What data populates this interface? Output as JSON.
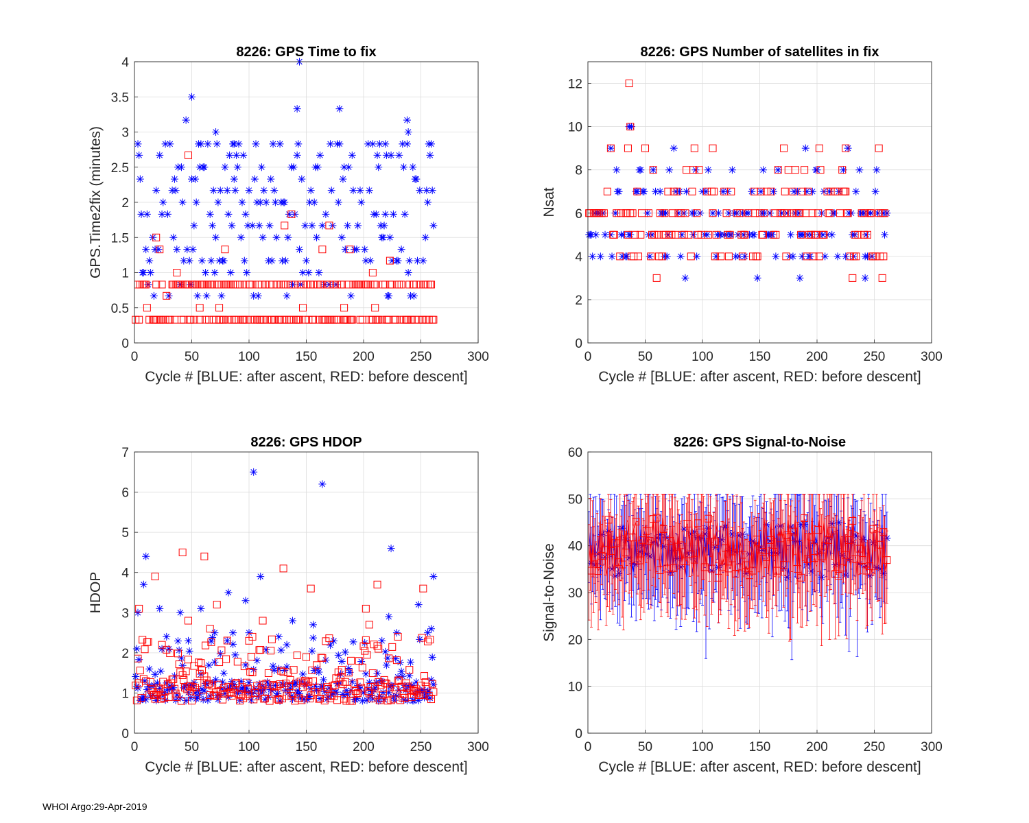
{
  "footer": "WHOI Argo:29-Apr-2019",
  "colors": {
    "ascent": "#0000ff",
    "descent": "#ff0000",
    "grid": "#dcdcdc",
    "axis": "#262626"
  },
  "chart_data": [
    {
      "id": "ttf",
      "type": "scatter",
      "title": "8226: GPS Time to fix",
      "xlabel": "Cycle #  [BLUE: after ascent, RED: before descent]",
      "ylabel": "GPS.Time2fix (minutes)",
      "xlim": [
        0,
        300
      ],
      "ylim": [
        0,
        4
      ],
      "xticks": [
        0,
        50,
        100,
        150,
        200,
        250,
        300
      ],
      "yticks": [
        0,
        0.5,
        1,
        1.5,
        2,
        2.5,
        3,
        3.5,
        4
      ],
      "cycle_range": [
        1,
        261
      ],
      "series": [
        {
          "name": "after ascent",
          "marker": "asterisk",
          "color": "#0000ff",
          "levels": [
            0.67,
            0.83,
            1.0,
            1.17,
            1.33,
            1.5,
            1.67,
            1.83,
            2.0,
            2.17,
            2.33,
            2.5,
            2.67,
            2.83
          ],
          "highlights": [
            [
              50,
              3.5
            ],
            [
              45,
              3.17
            ],
            [
              71,
              3.0
            ],
            [
              87,
              2.83
            ],
            [
              144,
              4.0
            ],
            [
              142,
              3.33
            ],
            [
              179,
              3.33
            ],
            [
              238,
              3.17
            ],
            [
              239,
              3.0
            ],
            [
              219,
              2.83
            ]
          ]
        },
        {
          "name": "before descent",
          "marker": "square",
          "color": "#ff0000",
          "levels": [
            0.33,
            0.83
          ],
          "highlights": [
            [
              47,
              2.67
            ],
            [
              19,
              1.5
            ],
            [
              22,
              1.33
            ],
            [
              37,
              1.0
            ],
            [
              79,
              1.33
            ],
            [
              131,
              1.67
            ],
            [
              137,
              1.83
            ],
            [
              164,
              1.33
            ],
            [
              170,
              1.67
            ],
            [
              188,
              1.33
            ],
            [
              208,
              1.0
            ],
            [
              223,
              1.17
            ],
            [
              11,
              0.5
            ],
            [
              28,
              0.67
            ],
            [
              57,
              0.5
            ],
            [
              74,
              0.5
            ],
            [
              147,
              0.5
            ],
            [
              183,
              0.5
            ],
            [
              210,
              0.5
            ]
          ]
        }
      ]
    },
    {
      "id": "nsat",
      "type": "scatter",
      "title": "8226: GPS Number of satellites in fix",
      "xlabel": "Cycle #  [BLUE: after ascent, RED: before descent]",
      "ylabel": "Nsat",
      "xlim": [
        0,
        300
      ],
      "ylim": [
        0,
        13
      ],
      "xticks": [
        0,
        50,
        100,
        150,
        200,
        250,
        300
      ],
      "yticks": [
        0,
        2,
        4,
        6,
        8,
        10,
        12
      ],
      "cycle_range": [
        1,
        261
      ],
      "series": [
        {
          "name": "after ascent",
          "marker": "asterisk",
          "color": "#0000ff",
          "levels": [
            4,
            5,
            6,
            7,
            8
          ],
          "highlights": [
            [
              85,
              3
            ],
            [
              148,
              3
            ],
            [
              185,
              3
            ],
            [
              242,
              3
            ],
            [
              20,
              9
            ],
            [
              75,
              9
            ],
            [
              190,
              9
            ],
            [
              227,
              9
            ],
            [
              36,
              10
            ],
            [
              38,
              10
            ]
          ]
        },
        {
          "name": "before descent",
          "marker": "square",
          "color": "#ff0000",
          "levels": [
            4,
            5,
            6,
            7,
            8
          ],
          "highlights": [
            [
              36,
              12
            ],
            [
              37,
              10
            ],
            [
              20,
              9
            ],
            [
              35,
              9
            ],
            [
              50,
              9
            ],
            [
              93,
              9
            ],
            [
              109,
              9
            ],
            [
              171,
              9
            ],
            [
              202,
              9
            ],
            [
              225,
              9
            ],
            [
              254,
              9
            ],
            [
              60,
              3
            ],
            [
              231,
              3
            ],
            [
              257,
              3
            ]
          ]
        }
      ]
    },
    {
      "id": "hdop",
      "type": "scatter",
      "title": "8226: GPS HDOP",
      "xlabel": "Cycle #  [BLUE: after ascent, RED: before descent]",
      "ylabel": "HDOP",
      "xlim": [
        0,
        300
      ],
      "ylim": [
        0,
        7
      ],
      "xticks": [
        0,
        50,
        100,
        150,
        200,
        250,
        300
      ],
      "yticks": [
        0,
        1,
        2,
        3,
        4,
        5,
        6,
        7
      ],
      "cycle_range": [
        1,
        261
      ],
      "series": [
        {
          "name": "after ascent",
          "marker": "asterisk",
          "color": "#0000ff",
          "highlights": [
            [
              104,
              6.5
            ],
            [
              164,
              6.2
            ],
            [
              224,
              4.6
            ],
            [
              10,
              4.4
            ],
            [
              8,
              3.7
            ],
            [
              261,
              3.9
            ],
            [
              110,
              3.9
            ],
            [
              3,
              3.0
            ],
            [
              22,
              3.1
            ],
            [
              40,
              3.0
            ],
            [
              58,
              3.1
            ],
            [
              82,
              3.5
            ],
            [
              97,
              3.3
            ],
            [
              156,
              2.7
            ],
            [
              138,
              2.8
            ],
            [
              248,
              3.2
            ],
            [
              256,
              2.5
            ],
            [
              259,
              2.6
            ],
            [
              229,
              2.5
            ],
            [
              222,
              2.9
            ],
            [
              216,
              2.3
            ],
            [
              2,
              2.1
            ],
            [
              28,
              2.4
            ],
            [
              47,
              2.3
            ],
            [
              70,
              2.5
            ],
            [
              86,
              2.5
            ],
            [
              100,
              2.5
            ],
            [
              133,
              2.2
            ],
            [
              126,
              2.4
            ]
          ]
        },
        {
          "name": "before descent",
          "marker": "square",
          "color": "#ff0000",
          "highlights": [
            [
              42,
              4.5
            ],
            [
              61,
              4.4
            ],
            [
              130,
              4.1
            ],
            [
              18,
              3.9
            ],
            [
              154,
              3.6
            ],
            [
              212,
              3.7
            ],
            [
              252,
              3.6
            ],
            [
              4,
              3.1
            ],
            [
              72,
              3.2
            ],
            [
              202,
              3.1
            ],
            [
              205,
              2.7
            ],
            [
              66,
              2.6
            ],
            [
              100,
              2.3
            ],
            [
              103,
              2.4
            ],
            [
              112,
              2.8
            ],
            [
              47,
              2.8
            ],
            [
              230,
              2.4
            ],
            [
              24,
              2.2
            ],
            [
              213,
              2.1
            ]
          ]
        }
      ]
    },
    {
      "id": "snr",
      "type": "errorbar",
      "title": "8226: GPS Signal-to-Noise",
      "xlabel": "Cycle #  [BLUE: after ascent, RED: before descent]",
      "ylabel": "Signal-to-Noise",
      "xlim": [
        0,
        300
      ],
      "ylim": [
        0,
        60
      ],
      "xticks": [
        0,
        50,
        100,
        150,
        200,
        250,
        300
      ],
      "yticks": [
        0,
        10,
        20,
        30,
        40,
        50,
        60
      ],
      "cycle_range": [
        1,
        261
      ],
      "series": [
        {
          "name": "after ascent",
          "marker": "asterisk",
          "color": "#0000ff",
          "mean_range": [
            33,
            45
          ],
          "min": 15,
          "max": 51
        },
        {
          "name": "before descent",
          "marker": "square",
          "color": "#ff0000",
          "mean_range": [
            33,
            46
          ],
          "min": 18,
          "max": 51
        }
      ]
    }
  ]
}
